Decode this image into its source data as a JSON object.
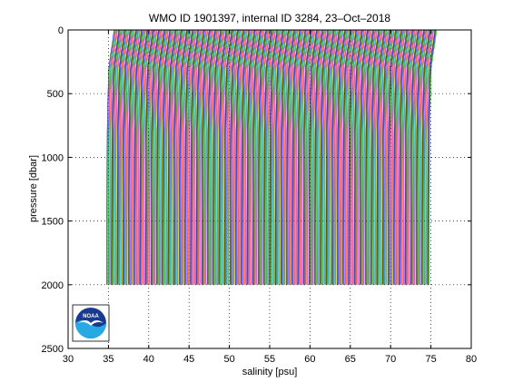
{
  "chart_data": {
    "type": "line",
    "title": "WMO ID 1901397, internal ID 3284, 23–Oct–2018",
    "xlabel": "salinity [psu]",
    "ylabel": "pressure [dbar]",
    "xlim": [
      30,
      80
    ],
    "ylim": [
      0,
      2500
    ],
    "y_reversed": true,
    "grid": true,
    "grid_style": "dotted",
    "xticks": [
      30,
      35,
      40,
      45,
      50,
      55,
      60,
      65,
      70,
      75,
      80
    ],
    "yticks": [
      0,
      500,
      1000,
      1500,
      2000,
      2500
    ],
    "profile_offset_step_psu": 0.1,
    "profile_count": 401,
    "profile_max_pressure_dbar": 2000,
    "profile_colors": [
      "#0000ff",
      "#00aa00",
      "#ff0000",
      "#00bfbf",
      "#bf00bf",
      "#bfbf00",
      "#000000"
    ],
    "base_profile": {
      "pressure": [
        0,
        100,
        200,
        300,
        500,
        800,
        1000,
        1500,
        2000
      ],
      "salinity": [
        35.7,
        35.5,
        35.25,
        35.05,
        34.95,
        34.85,
        34.83,
        34.8,
        34.78
      ]
    },
    "logo": {
      "text": "NOAA",
      "colors": [
        "#1a3a8f",
        "#27a9e1",
        "#ffffff"
      ]
    }
  }
}
